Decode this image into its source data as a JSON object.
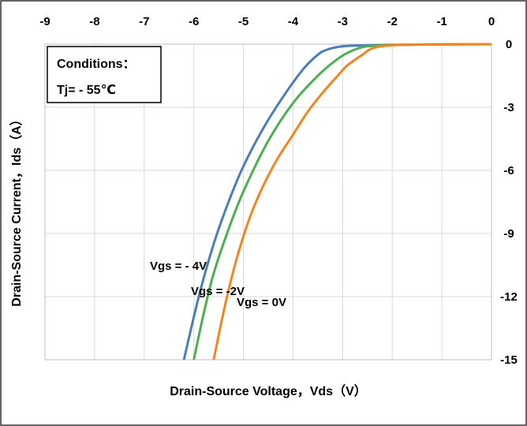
{
  "chart_data": {
    "type": "line",
    "xlabel": "Drain-Source Voltage，Vds（V）",
    "ylabel": "Drain-Source Current，Ids（A）",
    "xlim": [
      -9,
      0
    ],
    "ylim": [
      -15,
      0
    ],
    "x_ticks": [
      -9,
      -8,
      -7,
      -6,
      -5,
      -4,
      -3,
      -2,
      -1,
      0
    ],
    "y_ticks": [
      0,
      -3,
      -6,
      -9,
      -12,
      -15
    ],
    "x_tick_labels": [
      "-9",
      "-8",
      "-7",
      "-6",
      "-5",
      "-4",
      "-3",
      "-2",
      "-1",
      "0"
    ],
    "y_tick_labels": [
      "0",
      "-3",
      "-6",
      "-9",
      "-12",
      "-15"
    ],
    "x_axis_position": "top",
    "y_axis_position": "right",
    "grid": true,
    "conditions": {
      "title": "Conditions：",
      "temperature": "Tj= - 55℃"
    },
    "series": [
      {
        "name": "Vgs = - 4V",
        "color": "#4a7ebb",
        "points": [
          [
            0,
            0
          ],
          [
            -1,
            -0.01
          ],
          [
            -2,
            -0.03
          ],
          [
            -2.6,
            -0.06
          ],
          [
            -3.0,
            -0.1
          ],
          [
            -3.3,
            -0.25
          ],
          [
            -3.5,
            -0.5
          ],
          [
            -3.8,
            -1.2
          ],
          [
            -4.2,
            -2.5
          ],
          [
            -4.6,
            -4.0
          ],
          [
            -5.0,
            -5.8
          ],
          [
            -5.3,
            -7.5
          ],
          [
            -5.6,
            -9.5
          ],
          [
            -5.9,
            -12.0
          ],
          [
            -6.2,
            -15.0
          ]
        ]
      },
      {
        "name": "Vgs = -2V",
        "color": "#4caf50",
        "points": [
          [
            0,
            0
          ],
          [
            -1,
            -0.01
          ],
          [
            -2,
            -0.04
          ],
          [
            -2.5,
            -0.1
          ],
          [
            -2.8,
            -0.3
          ],
          [
            -3.1,
            -0.7
          ],
          [
            -3.5,
            -1.5
          ],
          [
            -4.0,
            -2.8
          ],
          [
            -4.5,
            -4.6
          ],
          [
            -5.0,
            -7.0
          ],
          [
            -5.3,
            -8.8
          ],
          [
            -5.6,
            -10.9
          ],
          [
            -5.8,
            -12.8
          ],
          [
            -6.0,
            -15.0
          ]
        ]
      },
      {
        "name": "Vgs = 0V",
        "color": "#f5841f",
        "points": [
          [
            0,
            0
          ],
          [
            -1,
            -0.01
          ],
          [
            -2,
            -0.05
          ],
          [
            -2.4,
            -0.2
          ],
          [
            -2.6,
            -0.5
          ],
          [
            -2.9,
            -1.0
          ],
          [
            -3.1,
            -1.5
          ],
          [
            -3.4,
            -2.3
          ],
          [
            -3.7,
            -3.2
          ],
          [
            -4.0,
            -4.3
          ],
          [
            -4.4,
            -5.8
          ],
          [
            -4.8,
            -7.8
          ],
          [
            -5.1,
            -9.9
          ],
          [
            -5.35,
            -12.2
          ],
          [
            -5.6,
            -15.0
          ]
        ]
      }
    ]
  }
}
